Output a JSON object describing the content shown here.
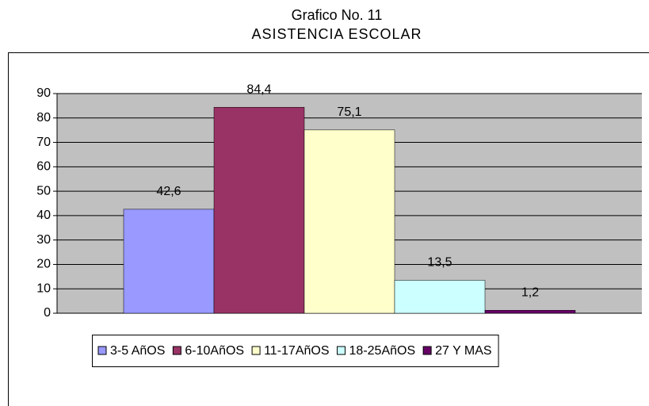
{
  "chart_data": {
    "type": "bar",
    "title": "Grafico No. 11",
    "subtitle": "ASISTENCIA ESCOLAR",
    "categories": [
      null
    ],
    "series": [
      {
        "name": "3-5 AñOS",
        "color": "#9999ff",
        "values": [
          42.6
        ],
        "value_labels": [
          "42,6"
        ]
      },
      {
        "name": "6-10AñOS",
        "color": "#993366",
        "values": [
          84.4
        ],
        "value_labels": [
          "84,4"
        ]
      },
      {
        "name": "11-17AñOS",
        "color": "#ffffcc",
        "values": [
          75.1
        ],
        "value_labels": [
          "75,1"
        ]
      },
      {
        "name": "18-25AñOS",
        "color": "#ccffff",
        "values": [
          13.5
        ],
        "value_labels": [
          "13,5"
        ]
      },
      {
        "name": "27 Y MAS",
        "color": "#660066",
        "values": [
          1.2
        ],
        "value_labels": [
          "1,2"
        ]
      }
    ],
    "ylim": [
      0,
      90
    ],
    "yticks": [
      0,
      10,
      20,
      30,
      40,
      50,
      60,
      70,
      80,
      90
    ],
    "grid": true,
    "legend": "bottom"
  }
}
